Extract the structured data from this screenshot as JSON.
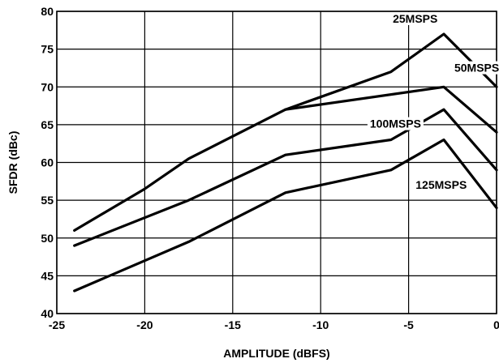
{
  "chart_data": {
    "type": "line",
    "title": "",
    "xlabel": "AMPLITUDE (dBFS)",
    "ylabel": "SFDR (dBc)",
    "xlim": [
      -25,
      0
    ],
    "ylim": [
      40,
      80
    ],
    "xticks": [
      -25,
      -20,
      -15,
      -10,
      -5,
      0
    ],
    "yticks": [
      40,
      45,
      50,
      55,
      60,
      65,
      70,
      75,
      80
    ],
    "xtick_labels": [
      "-25",
      "-20",
      "-15",
      "-10",
      "-5",
      "0"
    ],
    "ytick_labels": [
      "40",
      "45",
      "50",
      "55",
      "60",
      "65",
      "70",
      "75",
      "80"
    ],
    "grid": true,
    "series": [
      {
        "name": "25MSPS",
        "x": [
          -24,
          -20,
          -17.5,
          -12,
          -6,
          -3,
          0
        ],
        "y": [
          51,
          56.5,
          60.5,
          67,
          72,
          77,
          70
        ]
      },
      {
        "name": "50MSPS",
        "x": [
          -12,
          -3,
          0
        ],
        "y": [
          67,
          70,
          64
        ]
      },
      {
        "name": "100MSPS",
        "x": [
          -24,
          -17.5,
          -12,
          -6,
          -3,
          0
        ],
        "y": [
          49,
          55,
          61,
          63,
          67,
          59
        ]
      },
      {
        "name": "125MSPS",
        "x": [
          -24,
          -17.5,
          -12,
          -6,
          -3,
          0
        ],
        "y": [
          43,
          49.5,
          56,
          59,
          63,
          54
        ]
      }
    ],
    "annotations": [
      {
        "text": "25MSPS",
        "series": "25MSPS",
        "x": -5.9,
        "y": 78.5
      },
      {
        "text": "50MSPS",
        "series": "50MSPS",
        "x": -2.4,
        "y": 72
      },
      {
        "text": "100MSPS",
        "series": "100MSPS",
        "x": -7.2,
        "y": 64.6
      },
      {
        "text": "125MSPS",
        "series": "125MSPS",
        "x": -4.6,
        "y": 56.5
      }
    ]
  }
}
